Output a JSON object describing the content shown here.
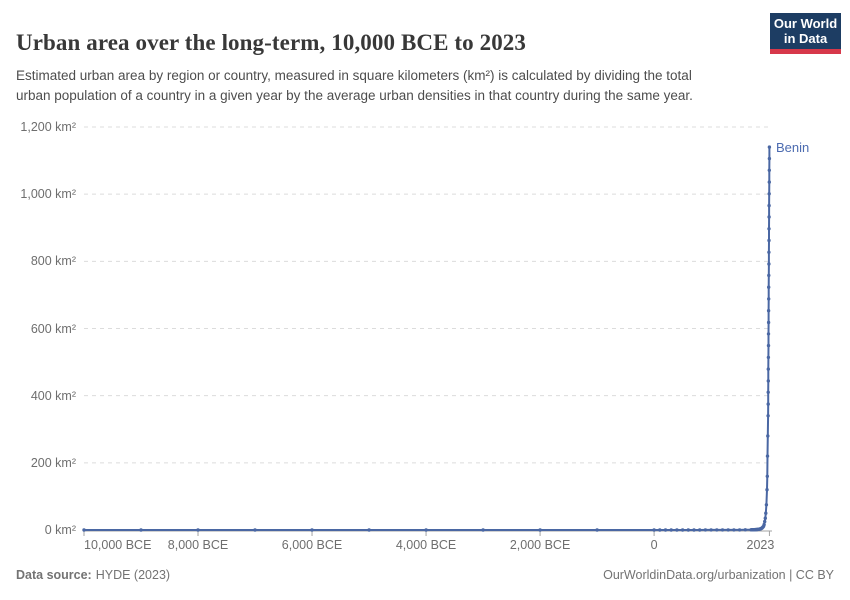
{
  "header": {
    "title": "Urban area over the long-term, 10,000 BCE to 2023",
    "subtitle": "Estimated urban area by region or country, measured in square kilometers (km²) is calculated by dividing the total urban population of a country in a given year by the average urban densities in that country during the same year.",
    "logo": {
      "line1": "Our World",
      "line2": "in Data",
      "bg_color": "#1d3d63",
      "accent_color": "#d7384a"
    }
  },
  "chart_data": {
    "type": "line",
    "title": "Urban area over the long-term, 10,000 BCE to 2023",
    "xlabel": "",
    "ylabel": "",
    "unit": "km²",
    "xlim": [
      -10000,
      2023
    ],
    "ylim": [
      0,
      1200
    ],
    "grid": "horizontal-dashed",
    "legend_position": "end-of-line-label",
    "x_ticks": [
      {
        "year": -10000,
        "label": "10,000 BCE"
      },
      {
        "year": -8000,
        "label": "8,000 BCE"
      },
      {
        "year": -6000,
        "label": "6,000 BCE"
      },
      {
        "year": -4000,
        "label": "4,000 BCE"
      },
      {
        "year": -2000,
        "label": "2,000 BCE"
      },
      {
        "year": 0,
        "label": "0"
      },
      {
        "year": 2023,
        "label": "2023"
      }
    ],
    "y_ticks": [
      {
        "value": 0,
        "label": "0 km²"
      },
      {
        "value": 200,
        "label": "200 km²"
      },
      {
        "value": 400,
        "label": "400 km²"
      },
      {
        "value": 600,
        "label": "600 km²"
      },
      {
        "value": 800,
        "label": "800 km²"
      },
      {
        "value": 1000,
        "label": "1,000 km²"
      },
      {
        "value": 1200,
        "label": "1,200 km²"
      }
    ],
    "series": [
      {
        "name": "Benin",
        "color": "#4a67a3",
        "label_color": "#4c6bb0",
        "points": [
          [
            -10000,
            0
          ],
          [
            -9000,
            0
          ],
          [
            -8000,
            0
          ],
          [
            -7000,
            0
          ],
          [
            -6000,
            0
          ],
          [
            -5000,
            0
          ],
          [
            -4000,
            0
          ],
          [
            -3000,
            0
          ],
          [
            -2000,
            0
          ],
          [
            -1000,
            0
          ],
          [
            0,
            0
          ],
          [
            100,
            0.1
          ],
          [
            200,
            0.1
          ],
          [
            300,
            0.1
          ],
          [
            400,
            0.1
          ],
          [
            500,
            0.1
          ],
          [
            600,
            0.1
          ],
          [
            700,
            0.1
          ],
          [
            800,
            0.1
          ],
          [
            900,
            0.2
          ],
          [
            1000,
            0.2
          ],
          [
            1100,
            0.2
          ],
          [
            1200,
            0.2
          ],
          [
            1300,
            0.3
          ],
          [
            1400,
            0.3
          ],
          [
            1500,
            0.4
          ],
          [
            1600,
            0.5
          ],
          [
            1700,
            0.7
          ],
          [
            1710,
            0.7
          ],
          [
            1720,
            0.8
          ],
          [
            1730,
            0.8
          ],
          [
            1740,
            0.9
          ],
          [
            1750,
            1
          ],
          [
            1760,
            1
          ],
          [
            1770,
            1.1
          ],
          [
            1780,
            1.2
          ],
          [
            1790,
            1.3
          ],
          [
            1800,
            1.4
          ],
          [
            1810,
            1.6
          ],
          [
            1820,
            1.8
          ],
          [
            1830,
            2
          ],
          [
            1840,
            2.3
          ],
          [
            1850,
            2.7
          ],
          [
            1860,
            3.2
          ],
          [
            1870,
            3.8
          ],
          [
            1880,
            4.5
          ],
          [
            1890,
            5.5
          ],
          [
            1900,
            7
          ],
          [
            1910,
            9
          ],
          [
            1920,
            11
          ],
          [
            1930,
            16
          ],
          [
            1940,
            25
          ],
          [
            1950,
            35
          ],
          [
            1960,
            50
          ],
          [
            1970,
            75
          ],
          [
            1980,
            120
          ],
          [
            1985,
            160
          ],
          [
            1990,
            220
          ],
          [
            1995,
            280
          ],
          [
            2000,
            340
          ],
          [
            2001,
            375
          ],
          [
            2002,
            410
          ],
          [
            2003,
            444
          ],
          [
            2004,
            479
          ],
          [
            2005,
            514
          ],
          [
            2006,
            549
          ],
          [
            2007,
            584
          ],
          [
            2008,
            618
          ],
          [
            2009,
            653
          ],
          [
            2010,
            688
          ],
          [
            2011,
            723
          ],
          [
            2012,
            758
          ],
          [
            2013,
            792
          ],
          [
            2014,
            827
          ],
          [
            2015,
            862
          ],
          [
            2016,
            897
          ],
          [
            2017,
            932
          ],
          [
            2018,
            966
          ],
          [
            2019,
            1001
          ],
          [
            2020,
            1036
          ],
          [
            2021,
            1071
          ],
          [
            2022,
            1106
          ],
          [
            2023,
            1140
          ]
        ]
      }
    ]
  },
  "footer": {
    "source_label": "Data source:",
    "source_value": "HYDE (2023)",
    "note_right": "OurWorldinData.org/urbanization | CC BY"
  }
}
